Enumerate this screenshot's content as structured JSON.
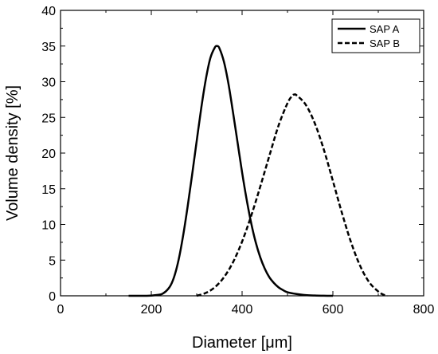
{
  "chart_data": {
    "type": "line",
    "title": "",
    "xlabel": "Diameter [μm]",
    "ylabel": "Volume density [%]",
    "xlim": [
      0,
      800
    ],
    "ylim": [
      0,
      40
    ],
    "x_ticks": [
      "0",
      "200",
      "400",
      "600",
      "800"
    ],
    "y_ticks": [
      "0",
      "5",
      "10",
      "15",
      "20",
      "25",
      "30",
      "35",
      "40"
    ],
    "grid": false,
    "legend_position": "top-right",
    "series": [
      {
        "name": "SAP A",
        "line_style": "solid",
        "color": "#000000",
        "x": [
          150,
          190,
          210,
          225,
          240,
          250,
          260,
          270,
          280,
          290,
          300,
          310,
          320,
          330,
          340,
          345,
          350,
          360,
          370,
          380,
          390,
          400,
          410,
          420,
          430,
          440,
          450,
          460,
          470,
          480,
          490,
          500,
          520,
          540,
          560,
          580,
          600
        ],
        "y": [
          0,
          0,
          0.1,
          0.3,
          1.2,
          2.6,
          5,
          8.4,
          12.5,
          17,
          21.7,
          26.3,
          30.3,
          33.3,
          34.8,
          35,
          34.7,
          32.8,
          29.7,
          25.7,
          21.5,
          17.3,
          13.5,
          10.2,
          7.5,
          5.4,
          3.8,
          2.6,
          1.8,
          1.2,
          0.8,
          0.5,
          0.25,
          0.1,
          0.04,
          0.01,
          0
        ]
      },
      {
        "name": "SAP B",
        "line_style": "dashed",
        "color": "#000000",
        "x": [
          300,
          320,
          340,
          360,
          380,
          400,
          420,
          440,
          460,
          480,
          500,
          510,
          515,
          520,
          540,
          560,
          580,
          600,
          620,
          640,
          660,
          680,
          700,
          710,
          720
        ],
        "y": [
          0,
          0.4,
          1.2,
          2.6,
          4.7,
          7.6,
          11.2,
          15.3,
          19.6,
          23.8,
          27,
          28,
          28.2,
          28.1,
          26.8,
          24.2,
          20.5,
          16.1,
          11.6,
          7.5,
          4.2,
          1.9,
          0.6,
          0.2,
          0
        ]
      }
    ]
  }
}
